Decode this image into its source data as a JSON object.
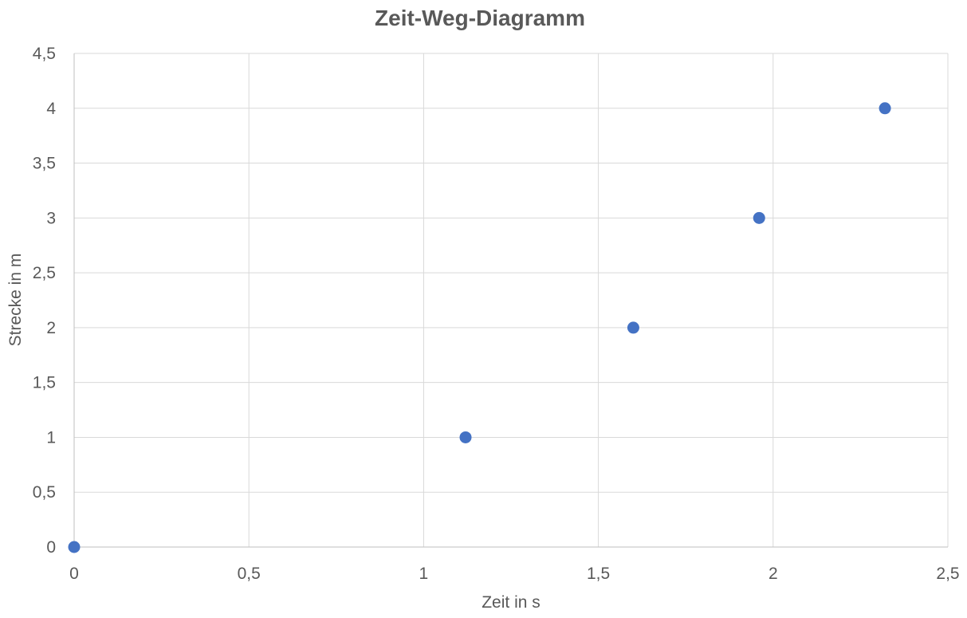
{
  "chart_data": {
    "type": "scatter",
    "title": "Zeit-Weg-Diagramm",
    "xlabel": "Zeit in s",
    "ylabel": "Strecke in m",
    "xlim": [
      0,
      2.5
    ],
    "ylim": [
      0,
      4.5
    ],
    "x_ticks": [
      "0",
      "0,5",
      "1",
      "1,5",
      "2",
      "2,5"
    ],
    "y_ticks": [
      "0",
      "0,5",
      "1",
      "1,5",
      "2",
      "2,5",
      "3",
      "3,5",
      "4",
      "4,5"
    ],
    "grid": true,
    "legend": "none",
    "marker_color": "#4472c4",
    "series": [
      {
        "x": [
          0,
          1.12,
          1.6,
          1.96,
          2.32
        ],
        "y": [
          0,
          1,
          2,
          3,
          4
        ]
      }
    ]
  }
}
